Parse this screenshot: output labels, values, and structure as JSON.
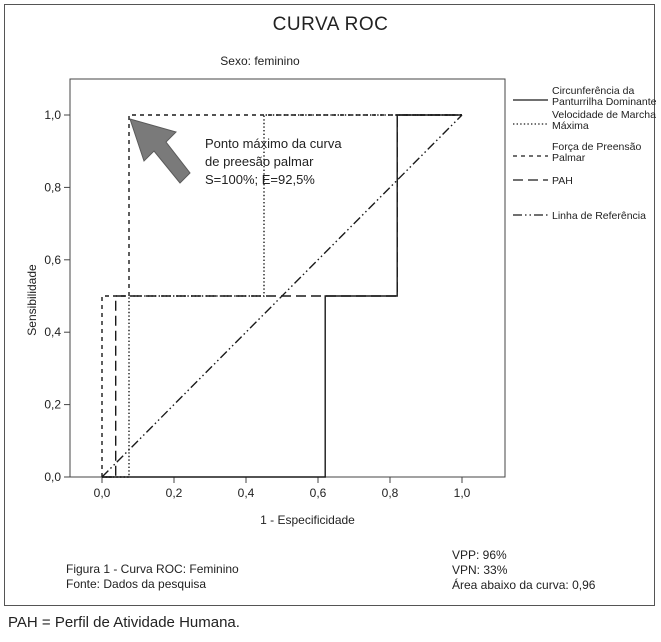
{
  "chart_data": {
    "type": "line",
    "title": "CURVA ROC",
    "subtitle": "Sexo: feminino",
    "xlabel": "1 - Especificidade",
    "ylabel": "Sensibilidade",
    "xlim": [
      0,
      1
    ],
    "ylim": [
      0,
      1
    ],
    "x_ticks": [
      "0,0",
      "0,2",
      "0,4",
      "0,6",
      "0,8",
      "1,0"
    ],
    "y_ticks": [
      "0,0",
      "0,2",
      "0,4",
      "0,6",
      "0,8",
      "1,0"
    ],
    "legend_position": "right",
    "series": [
      {
        "name": "Circunferência da Panturrilha Dominante",
        "dash": "solid",
        "points": [
          [
            0.0,
            0.0
          ],
          [
            0.62,
            0.0
          ],
          [
            0.62,
            0.5
          ],
          [
            0.82,
            0.5
          ],
          [
            0.82,
            1.0
          ],
          [
            1.0,
            1.0
          ]
        ]
      },
      {
        "name": "Velocidade de Marcha Máxima",
        "dash": "dotted",
        "points": [
          [
            0.0,
            0.0
          ],
          [
            0.075,
            0.0
          ],
          [
            0.075,
            0.5
          ],
          [
            0.45,
            0.5
          ],
          [
            0.45,
            1.0
          ],
          [
            1.0,
            1.0
          ]
        ]
      },
      {
        "name": "Força de Preensão Palmar",
        "dash": "short-dash",
        "points": [
          [
            0.0,
            0.0
          ],
          [
            0.0,
            0.5
          ],
          [
            0.075,
            0.5
          ],
          [
            0.075,
            1.0
          ],
          [
            1.0,
            1.0
          ]
        ]
      },
      {
        "name": "PAH",
        "dash": "long-dash",
        "points": [
          [
            0.0,
            0.0
          ],
          [
            0.038,
            0.0
          ],
          [
            0.038,
            0.5
          ],
          [
            0.82,
            0.5
          ],
          [
            0.82,
            1.0
          ],
          [
            1.0,
            1.0
          ]
        ]
      },
      {
        "name": "Linha de Referência",
        "dash": "dash-dot-dot",
        "points": [
          [
            0.0,
            0.0
          ],
          [
            1.0,
            1.0
          ]
        ]
      }
    ],
    "annotation": {
      "lines": [
        "Ponto máximo da curva",
        "de preesão palmar",
        "S=100%; E=92,5%"
      ]
    }
  },
  "caption": {
    "figure": "Figura 1 - Curva ROC: Feminino",
    "source": "Fonte: Dados da pesquisa"
  },
  "stats": {
    "vpp": "VPP: 96%",
    "vpn": "VPN: 33%",
    "auc": "Área abaixo da curva: 0,96"
  },
  "footer": "PAH = Perfil de Atividade Humana."
}
